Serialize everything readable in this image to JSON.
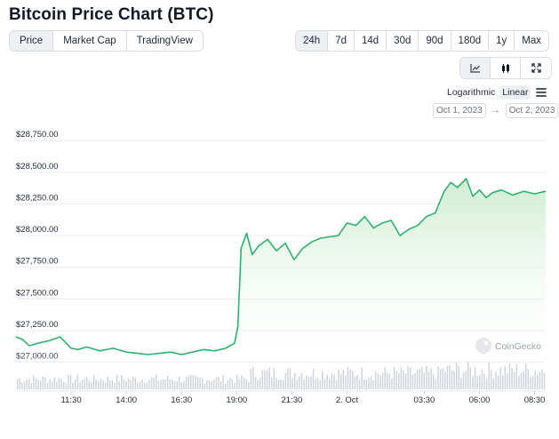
{
  "page": {
    "title": "Bitcoin Price Chart (BTC)"
  },
  "view_tabs": [
    {
      "label": "Price",
      "active": true
    },
    {
      "label": "Market Cap",
      "active": false
    },
    {
      "label": "TradingView",
      "active": false
    }
  ],
  "range_tabs": [
    {
      "label": "24h",
      "active": true
    },
    {
      "label": "7d",
      "active": false
    },
    {
      "label": "14d",
      "active": false
    },
    {
      "label": "30d",
      "active": false
    },
    {
      "label": "90d",
      "active": false
    },
    {
      "label": "180d",
      "active": false
    },
    {
      "label": "1y",
      "active": false
    },
    {
      "label": "Max",
      "active": false
    }
  ],
  "chart_type": {
    "options": [
      "line-chart-icon",
      "candlestick-icon",
      "fullscreen-icon"
    ],
    "active": "line-chart-icon"
  },
  "scale": {
    "logarithmic_label": "Logarithmic",
    "linear_label": "Linear",
    "active": "Linear",
    "menu_icon": "menu-icon"
  },
  "date_range": {
    "from": "Oct 1, 2023",
    "arrow": "→",
    "to": "Oct 2, 2023"
  },
  "watermark": {
    "text": "CoinGecko",
    "icon": "coingecko-logo-icon"
  },
  "colors": {
    "line": "#2fb26e",
    "fill_top": "#c9ebcb",
    "volume": "#cfd4dc",
    "grid": "#e9ecef"
  },
  "chart_data": {
    "type": "area",
    "title": "",
    "xlabel": "",
    "ylabel": "",
    "y_ticks": [
      "$27,000.00",
      "$27,250.00",
      "$27,500.00",
      "$27,750.00",
      "$28,000.00",
      "$28,250.00",
      "$28,500.00",
      "$28,750.00"
    ],
    "y_tick_values": [
      27000,
      27250,
      27500,
      27750,
      28000,
      28250,
      28500,
      28750
    ],
    "ylim": [
      26990,
      28850
    ],
    "x_ticks": [
      "11:30",
      "14:00",
      "16:30",
      "19:00",
      "21:30",
      "2. Oct",
      "03:30",
      "06:00",
      "08:30"
    ],
    "x_tick_hours": [
      2.5,
      5,
      7.5,
      10,
      12.5,
      15,
      18.5,
      21,
      23.5
    ],
    "xlim_hours": [
      0,
      24
    ],
    "grid": "horizontal",
    "series": [
      {
        "x_hours": [
          0,
          0.3,
          0.6,
          1.0,
          1.5,
          2.0,
          2.5,
          2.8,
          3.2,
          3.8,
          4.4,
          5.0,
          5.5,
          6.0,
          6.5,
          7.0,
          7.5,
          8.0,
          8.5,
          9.0,
          9.5,
          9.9,
          10.05,
          10.2,
          10.45,
          10.7,
          11.0,
          11.4,
          11.8,
          12.2,
          12.6,
          13.0,
          13.4,
          13.8,
          14.2,
          14.6,
          15.0,
          15.4,
          15.8,
          16.2,
          16.6,
          17.0,
          17.4,
          17.8,
          18.2,
          18.6,
          19.0,
          19.4,
          19.7,
          20.0,
          20.4,
          20.7,
          21.0,
          21.3,
          21.6,
          22.0,
          22.5,
          23.0,
          23.5,
          24.0
        ],
        "values": [
          27200,
          27180,
          27130,
          27150,
          27170,
          27200,
          27110,
          27100,
          27120,
          27090,
          27110,
          27080,
          27070,
          27060,
          27070,
          27080,
          27060,
          27080,
          27100,
          27090,
          27110,
          27150,
          27280,
          27900,
          28020,
          27850,
          27920,
          27970,
          27880,
          27940,
          27810,
          27900,
          27950,
          27980,
          27990,
          28000,
          28100,
          28080,
          28150,
          28060,
          28100,
          28120,
          28000,
          28050,
          28080,
          28150,
          28180,
          28350,
          28420,
          28380,
          28450,
          28310,
          28360,
          28300,
          28340,
          28360,
          28320,
          28350,
          28330,
          28350
        ]
      }
    ],
    "volume_bars_visible": true
  }
}
